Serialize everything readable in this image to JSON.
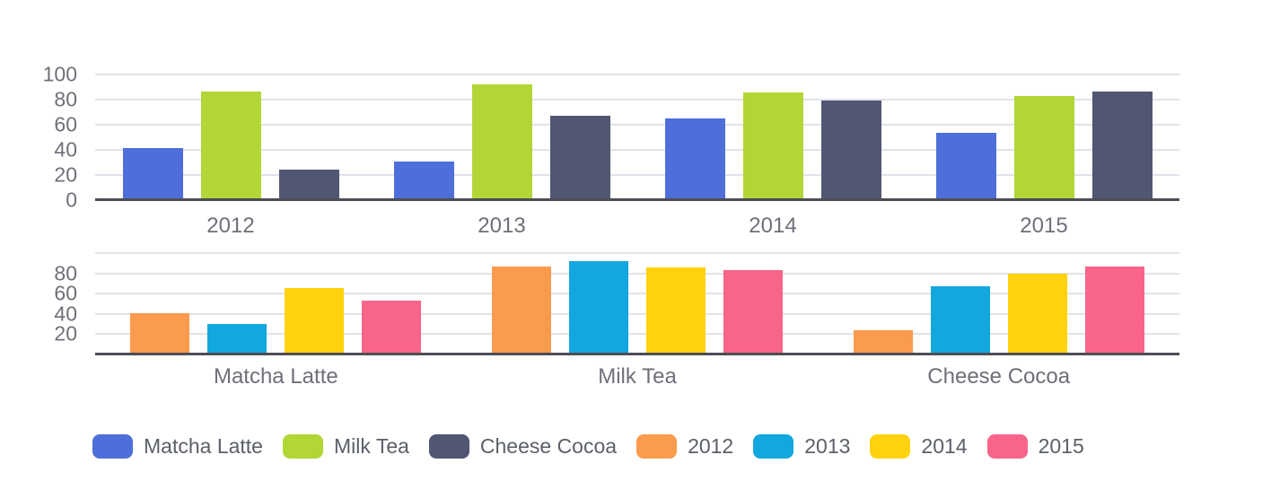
{
  "colors": {
    "grid": "#e1e3ea",
    "axis": "#4d4d55",
    "tick_text": "#6e7079",
    "legend_text": "#5a5f68",
    "background": "#ffffff"
  },
  "chart_data": [
    {
      "type": "bar",
      "title": "",
      "xlabel": "",
      "ylabel": "",
      "categories": [
        "2012",
        "2013",
        "2014",
        "2015"
      ],
      "series": [
        {
          "name": "Matcha Latte",
          "color": "#4e6fda",
          "values": [
            41.1,
            30.4,
            65.1,
            53.3
          ]
        },
        {
          "name": "Milk Tea",
          "color": "#b1d636",
          "values": [
            86.5,
            92.1,
            85.7,
            83.1
          ]
        },
        {
          "name": "Cheese Cocoa",
          "color": "#515673",
          "values": [
            24.1,
            67.2,
            79.5,
            86.4
          ]
        }
      ],
      "ylim": [
        0,
        100
      ],
      "ytick_labels": [
        0,
        20,
        40,
        60,
        80,
        100
      ],
      "gridline_values": [
        20,
        40,
        60,
        80,
        100
      ],
      "grid": true,
      "legend_position": "shared-bottom"
    },
    {
      "type": "bar",
      "title": "",
      "xlabel": "",
      "ylabel": "",
      "categories": [
        "Matcha Latte",
        "Milk Tea",
        "Cheese Cocoa"
      ],
      "series": [
        {
          "name": "2012",
          "color": "#fb9b4d",
          "values": [
            41.1,
            86.5,
            24.1
          ]
        },
        {
          "name": "2013",
          "color": "#12a7de",
          "values": [
            30.4,
            92.1,
            67.2
          ]
        },
        {
          "name": "2014",
          "color": "#ffd20d",
          "values": [
            65.1,
            85.7,
            79.5
          ]
        },
        {
          "name": "2015",
          "color": "#f96489",
          "values": [
            53.3,
            83.1,
            86.4
          ]
        }
      ],
      "ylim": [
        0,
        100
      ],
      "ytick_labels": [
        20,
        40,
        60,
        80
      ],
      "gridline_values": [
        20,
        40,
        60,
        80,
        100
      ],
      "grid": true,
      "legend_position": "shared-bottom"
    }
  ],
  "legend": {
    "items": [
      {
        "label": "Matcha Latte",
        "color": "#4e6fda"
      },
      {
        "label": "Milk Tea",
        "color": "#b1d636"
      },
      {
        "label": "Cheese Cocoa",
        "color": "#515673"
      },
      {
        "label": "2012",
        "color": "#fb9b4d"
      },
      {
        "label": "2013",
        "color": "#12a7de"
      },
      {
        "label": "2014",
        "color": "#ffd20d"
      },
      {
        "label": "2015",
        "color": "#f96489"
      }
    ]
  }
}
